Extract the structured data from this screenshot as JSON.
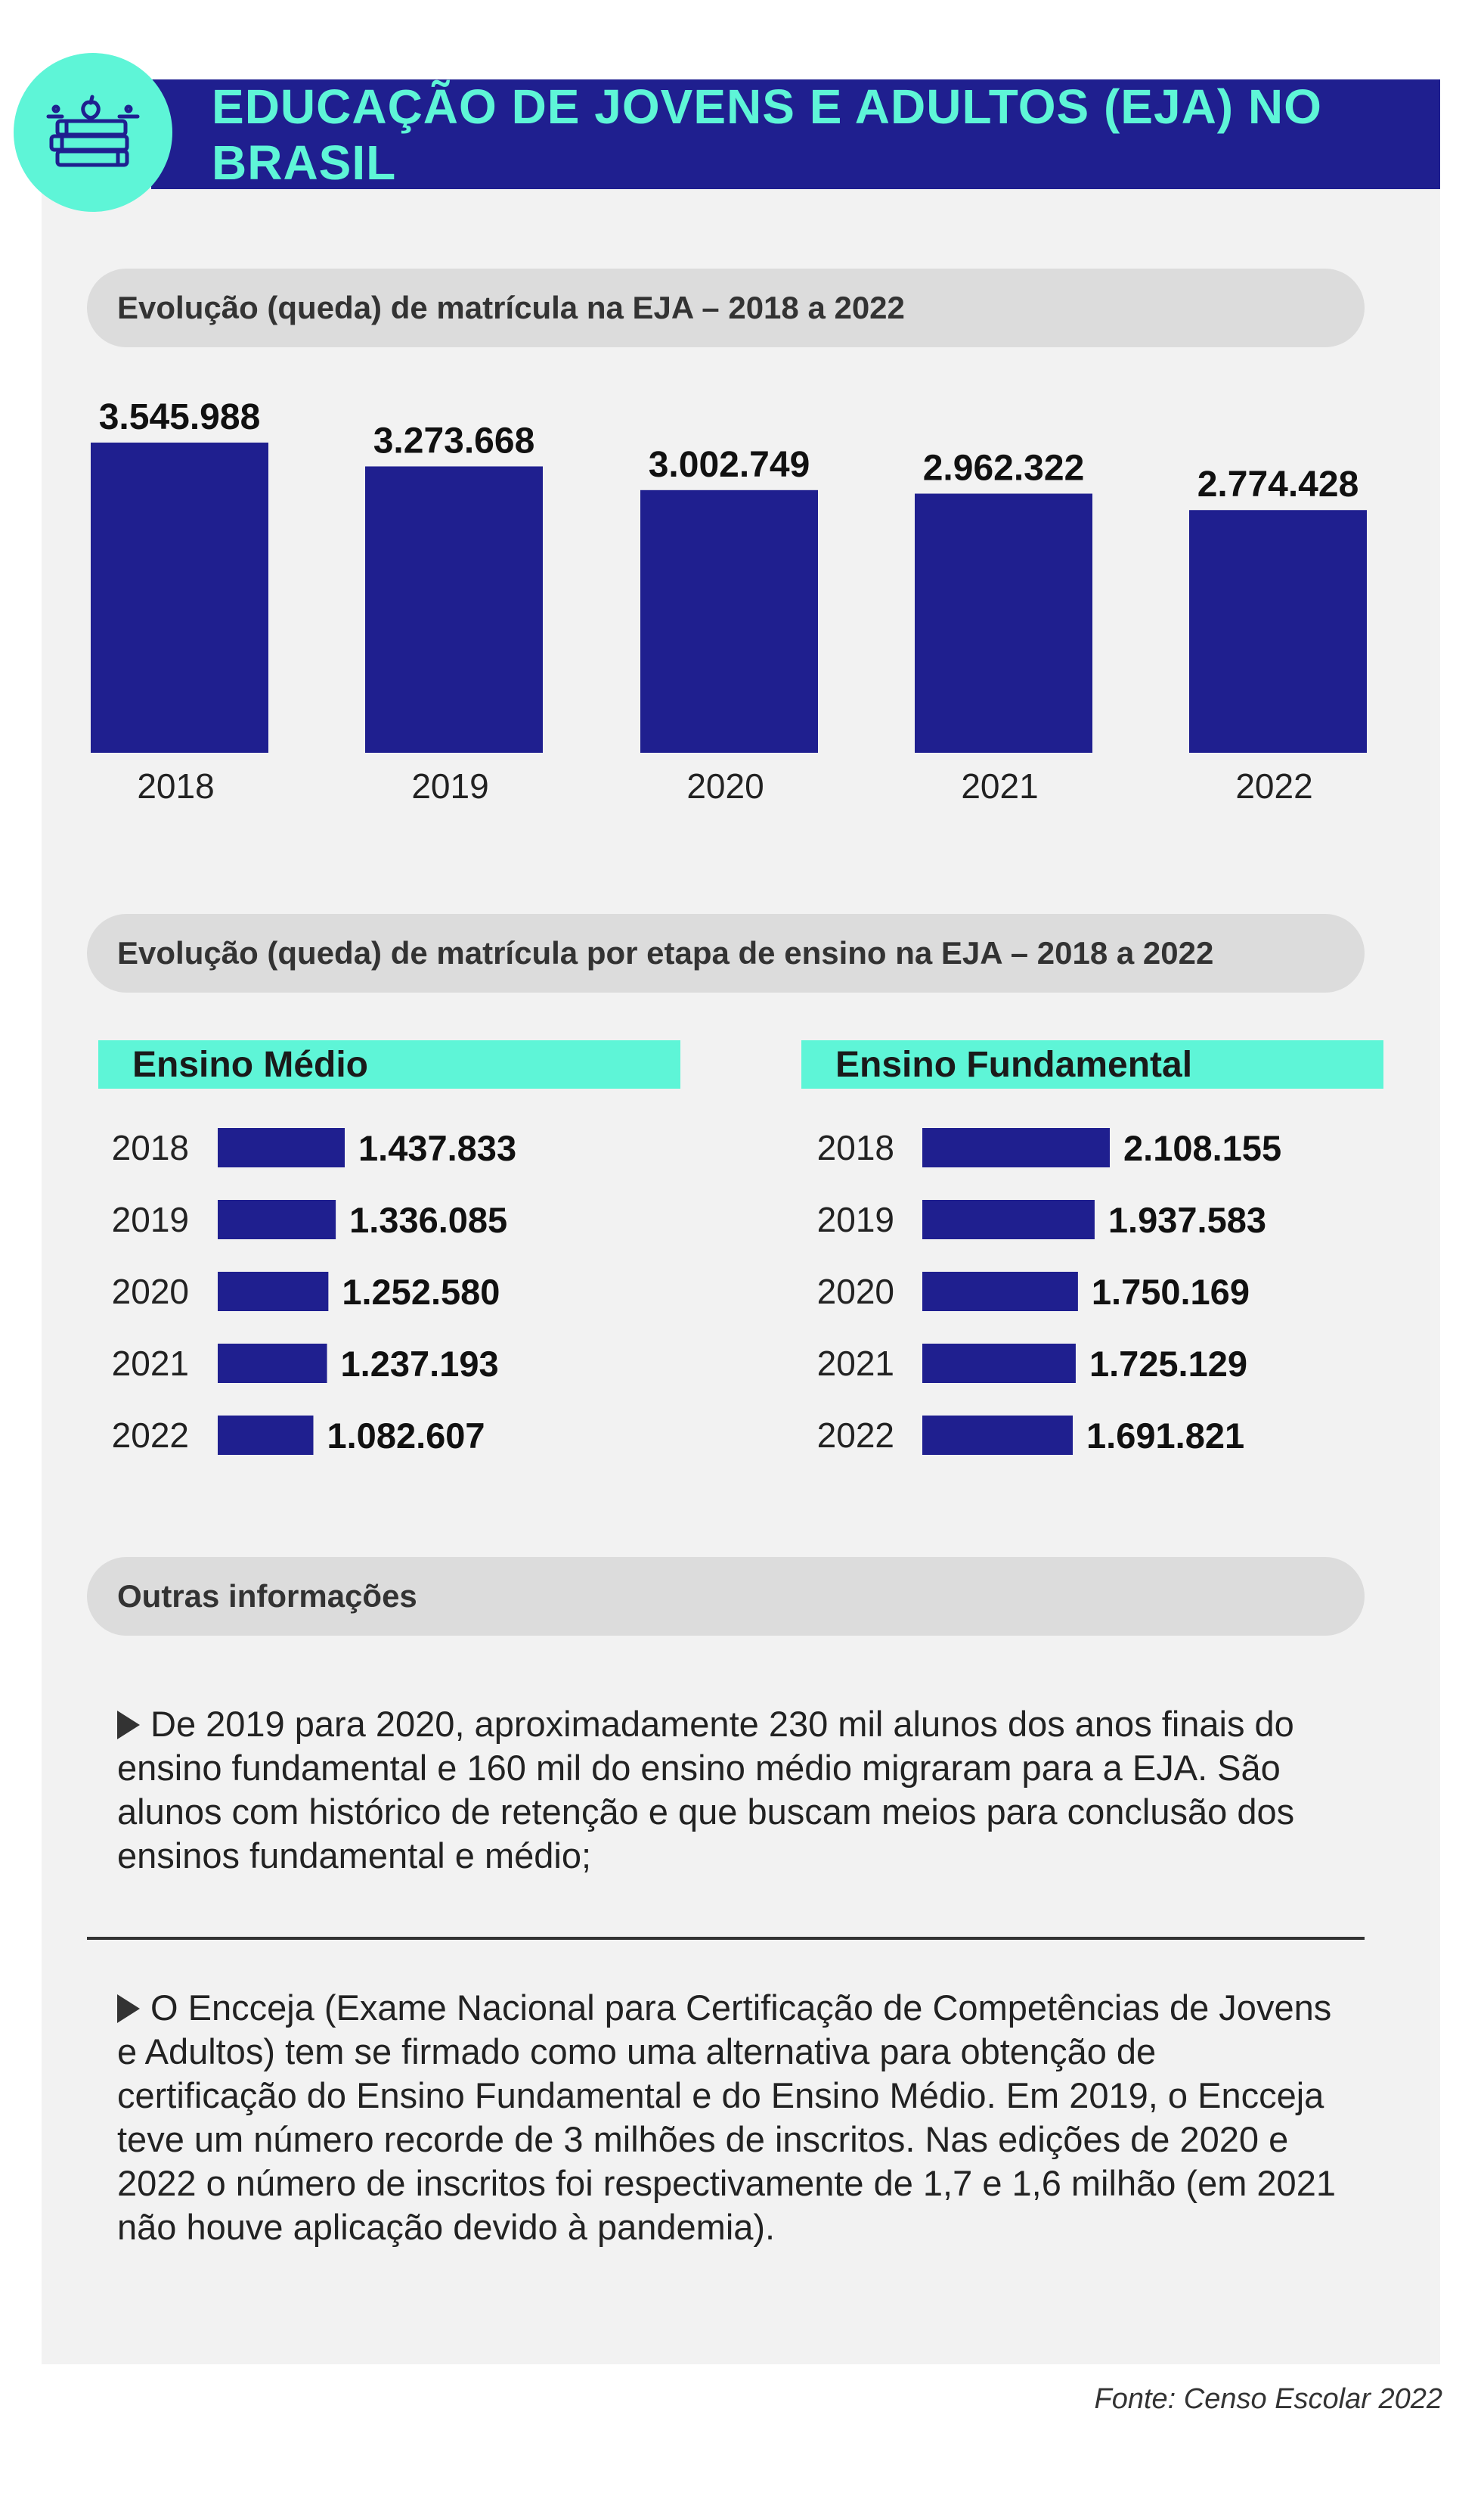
{
  "header": {
    "title": "EDUCAÇÃO DE JOVENS E ADULTOS (EJA) NO BRASIL",
    "logo_icon": "books-apple-icon"
  },
  "colors": {
    "bar": "#1f1f8f",
    "accent": "#5ef5d7",
    "panel": "#f2f2f2",
    "pill": "#dcdcdc"
  },
  "section1": {
    "title": "Evolução (queda) de matrícula na EJA – 2018 a 2022"
  },
  "section2": {
    "title": "Evolução (queda) de matrícula por etapa de ensino na EJA – 2018 a 2022"
  },
  "section3": {
    "title": "Outras informações"
  },
  "chart_data": [
    {
      "type": "bar",
      "title": "Evolução (queda) de matrícula na EJA – 2018 a 2022",
      "categories": [
        "2018",
        "2019",
        "2020",
        "2021",
        "2022"
      ],
      "values": [
        3545988,
        3273668,
        3002749,
        2962322,
        2774428
      ],
      "labels": [
        "3.545.988",
        "3.273.668",
        "3.002.749",
        "2.962.322",
        "2.774.428"
      ]
    },
    {
      "type": "bar",
      "orientation": "horizontal",
      "title": "Ensino Médio",
      "categories": [
        "2018",
        "2019",
        "2020",
        "2021",
        "2022"
      ],
      "values": [
        1437833,
        1336085,
        1252580,
        1237193,
        1082607
      ],
      "labels": [
        "1.437.833",
        "1.336.085",
        "1.252.580",
        "1.237.193",
        "1.082.607"
      ]
    },
    {
      "type": "bar",
      "orientation": "horizontal",
      "title": "Ensino Fundamental",
      "categories": [
        "2018",
        "2019",
        "2020",
        "2021",
        "2022"
      ],
      "values": [
        2108155,
        1937583,
        1750169,
        1725129,
        1691821
      ],
      "labels": [
        "2.108.155",
        "1.937.583",
        "1.750.169",
        "1.725.129",
        "1.691.821"
      ]
    }
  ],
  "info": {
    "p1": "De 2019 para 2020, aproximadamente 230 mil alunos dos anos finais do ensino fundamental e 160 mil do ensino médio migraram para a EJA. São alunos com histórico de retenção e que buscam meios para conclusão dos ensinos fundamental e médio;",
    "p2": "O Encceja (Exame Nacional para Certificação de Competências de Jovens e Adultos) tem se firmado como uma alternativa para obtenção de certificação do Ensino Fundamental e do Ensino Médio. Em 2019, o Encceja teve um número recorde de 3 milhões de inscritos. Nas edições de 2020 e 2022 o número de inscritos foi respectivamente de 1,7 e 1,6 milhão (em 2021 não houve aplicação devido à pandemia)."
  },
  "source": "Fonte: Censo Escolar 2022"
}
